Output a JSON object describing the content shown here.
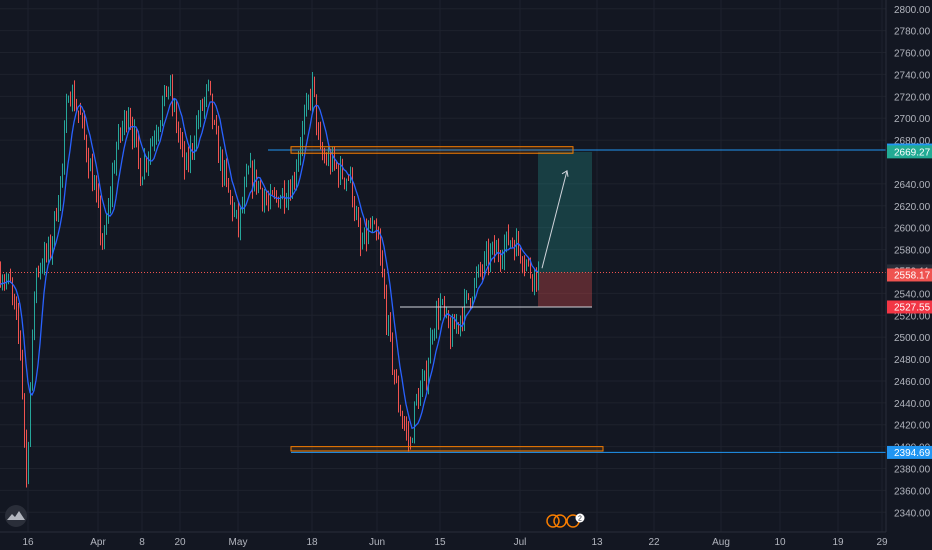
{
  "colors": {
    "background": "#131722",
    "grid": "#1e222d",
    "axis_text": "#b2b5be",
    "candle_up": "#26a69a",
    "candle_down": "#ef5350",
    "ma_line": "#2962ff",
    "zone_border": "#f57c00",
    "h_line": "#2196f3",
    "profit_fill": "#26a69a",
    "loss_fill": "#ef5350",
    "price_line": "#ef5350"
  },
  "chart_data": {
    "type": "candlestick",
    "ylim": [
      2322,
      2808
    ],
    "y_ticks": [
      {
        "value": 2340,
        "label": "2340.00"
      },
      {
        "value": 2360,
        "label": "2360.00"
      },
      {
        "value": 2380,
        "label": "2380.00"
      },
      {
        "value": 2400,
        "label": "2400.00"
      },
      {
        "value": 2420,
        "label": "2420.00"
      },
      {
        "value": 2440,
        "label": "2440.00"
      },
      {
        "value": 2460,
        "label": "2460.00"
      },
      {
        "value": 2480,
        "label": "2480.00"
      },
      {
        "value": 2500,
        "label": "2500.00"
      },
      {
        "value": 2520,
        "label": "2520.00"
      },
      {
        "value": 2540,
        "label": "2540.00"
      },
      {
        "value": 2580,
        "label": "2580.00"
      },
      {
        "value": 2600,
        "label": "2600.00"
      },
      {
        "value": 2620,
        "label": "2620.00"
      },
      {
        "value": 2640,
        "label": "2640.00"
      },
      {
        "value": 2680,
        "label": "2680.00"
      },
      {
        "value": 2700,
        "label": "2700.00"
      },
      {
        "value": 2720,
        "label": "2720.00"
      },
      {
        "value": 2740,
        "label": "2740.00"
      },
      {
        "value": 2760,
        "label": "2760.00"
      },
      {
        "value": 2780,
        "label": "2780.00"
      },
      {
        "value": 2800,
        "label": "2800.00"
      }
    ],
    "x_ticks": [
      "16",
      "Apr",
      "8",
      "20",
      "May",
      "18",
      "Jun",
      "15",
      "Jul",
      "13",
      "22",
      "Aug",
      "10",
      "19",
      "29"
    ],
    "price_path": [
      [
        0,
        2560
      ],
      [
        10,
        2545
      ],
      [
        20,
        2490
      ],
      [
        26,
        2370
      ],
      [
        35,
        2560
      ],
      [
        50,
        2580
      ],
      [
        62,
        2655
      ],
      [
        68,
        2730
      ],
      [
        80,
        2700
      ],
      [
        95,
        2630
      ],
      [
        103,
        2580
      ],
      [
        115,
        2670
      ],
      [
        128,
        2710
      ],
      [
        140,
        2650
      ],
      [
        155,
        2690
      ],
      [
        168,
        2730
      ],
      [
        175,
        2700
      ],
      [
        185,
        2650
      ],
      [
        198,
        2700
      ],
      [
        208,
        2725
      ],
      [
        215,
        2680
      ],
      [
        228,
        2630
      ],
      [
        238,
        2600
      ],
      [
        248,
        2650
      ],
      [
        258,
        2640
      ],
      [
        268,
        2620
      ],
      [
        280,
        2630
      ],
      [
        292,
        2640
      ],
      [
        300,
        2680
      ],
      [
        312,
        2730
      ],
      [
        320,
        2665
      ],
      [
        330,
        2660
      ],
      [
        340,
        2650
      ],
      [
        350,
        2645
      ],
      [
        360,
        2580
      ],
      [
        370,
        2600
      ],
      [
        378,
        2585
      ],
      [
        386,
        2520
      ],
      [
        393,
        2470
      ],
      [
        398,
        2440
      ],
      [
        405,
        2415
      ],
      [
        410,
        2400
      ],
      [
        415,
        2440
      ],
      [
        425,
        2460
      ],
      [
        432,
        2510
      ],
      [
        440,
        2530
      ],
      [
        450,
        2500
      ],
      [
        460,
        2520
      ],
      [
        470,
        2540
      ],
      [
        480,
        2560
      ],
      [
        490,
        2575
      ],
      [
        500,
        2580
      ],
      [
        510,
        2590
      ],
      [
        520,
        2580
      ],
      [
        530,
        2560
      ],
      [
        538,
        2558
      ]
    ],
    "annotations": {
      "resistance_zone": {
        "x1": 291,
        "x2": 573,
        "y_top": 2674,
        "y_bottom": 2668
      },
      "support_zone": {
        "x1": 291,
        "x2": 603,
        "y_top": 2400,
        "y_bottom": 2396
      },
      "resistance_line": {
        "x1": 268,
        "value": 2670.93,
        "label": "2670.93"
      },
      "support_line": {
        "x1": 291,
        "value": 2394.69,
        "label": "2394.69"
      },
      "position": {
        "x1": 538,
        "x2": 592,
        "target": 2669.27,
        "target_label": "2669.27",
        "entry": 2559.11,
        "entry_label": "2559.11",
        "stop": 2527.55,
        "stop_label": "2527.55"
      },
      "current_price": {
        "value": 2558.17,
        "label": "2558.17"
      },
      "stop_guide": {
        "x1": 400,
        "value": 2527.55
      },
      "arrow": {
        "x1": 542,
        "v1": 2563,
        "x2": 567,
        "v2": 2652
      }
    }
  },
  "status": {
    "events_badge": "2"
  }
}
